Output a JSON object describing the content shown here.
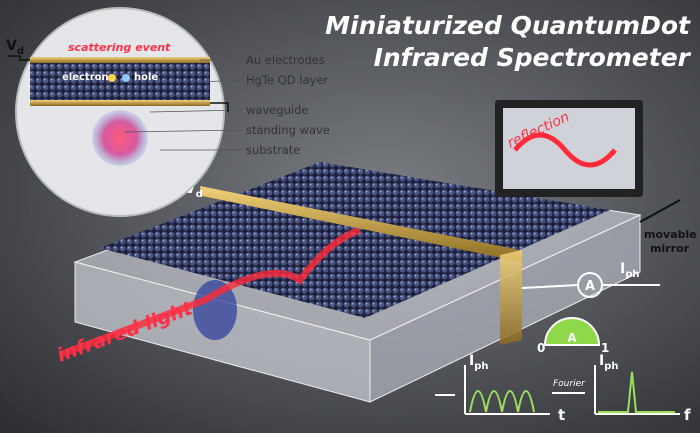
{
  "title": [
    "Miniaturized QuantumDot",
    "Infrared Spectrometer"
  ],
  "inset": {
    "voltage": {
      "symbol": "V",
      "subscript": "d"
    },
    "event": "scattering event",
    "carriers": [
      "electron",
      "hole"
    ],
    "labels": [
      "Au electrodes",
      "HgTe QD layer",
      "waveguide",
      "standing wave",
      "substrate"
    ]
  },
  "device": {
    "voltage": {
      "symbol": "V",
      "subscript": "d"
    },
    "mirror_label": "reflection",
    "mirror_caption": [
      "movable",
      "mirror"
    ],
    "input_label": "infrared light"
  },
  "ammeter": {
    "symbol": "A",
    "current": {
      "symbol": "I",
      "subscript": "ph"
    }
  },
  "gauge": {
    "symbol": "A",
    "min": 0,
    "max": 1
  },
  "plots": [
    {
      "y_label": {
        "symbol": "I",
        "subscript": "ph"
      },
      "x_label": "t"
    },
    {
      "y_label": {
        "symbol": "I",
        "subscript": "ph"
      },
      "x_label": "f"
    }
  ],
  "transform": "Fourier"
}
